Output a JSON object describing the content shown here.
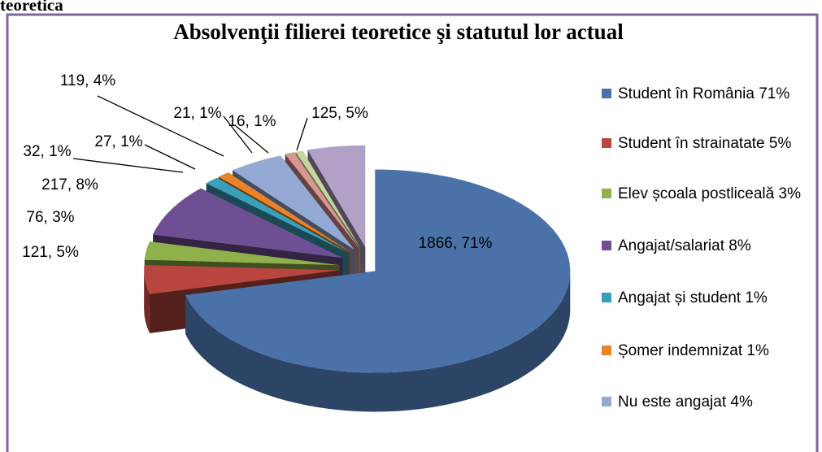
{
  "header_text": "teoretica",
  "chart_data": {
    "type": "pie3d",
    "title": "Absolvenţii filierei teoretice şi statutul lor actual",
    "categories": [
      "Student în România 71%",
      "Student în strainatate 5%",
      "Elev școala postliceală 3%",
      "Angajat/salariat 8%",
      "Angajat și student 1%",
      "Șomer indemnizat 1%",
      "Nu este angajat 4%",
      null,
      null,
      null
    ],
    "values": [
      1866,
      121,
      76,
      217,
      32,
      27,
      119,
      21,
      16,
      125
    ],
    "value_labels": [
      "1866, 71%",
      "121, 5%",
      "76, 3%",
      "217, 8%",
      "32, 1%",
      "27, 1%",
      "119, 4%",
      "21, 1%",
      "16, 1%",
      "125, 5%"
    ],
    "colors": [
      "#4a72a8",
      "#b8463f",
      "#8fb04a",
      "#6e4f93",
      "#3a9fb8",
      "#e8832a",
      "#94aad5",
      "#d99591",
      "#c3d69b",
      "#b2a1c7"
    ],
    "legend": "right"
  }
}
